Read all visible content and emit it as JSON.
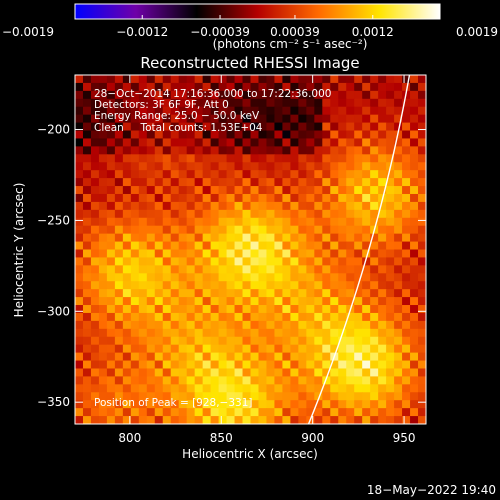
{
  "chart_data": {
    "type": "heatmap",
    "title": "Reconstructed RHESSI Image",
    "xlabel": "Heliocentric X (arcsec)",
    "ylabel": "Heliocentric Y (arcsec)",
    "xlim": [
      770,
      962
    ],
    "ylim": [
      -362,
      -170
    ],
    "x_ticks": [
      "800",
      "850",
      "900",
      "950"
    ],
    "x_tick_values": [
      800,
      850,
      900,
      950
    ],
    "y_ticks": [
      "−200",
      "−250",
      "−300",
      "−350"
    ],
    "y_tick_values": [
      -200,
      -250,
      -300,
      -350
    ],
    "colorbar": {
      "range": [
        -0.0019,
        0.0019
      ],
      "tick_labels": [
        "−0.0019",
        "−0.0012",
        "−0.00039",
        "0.00039",
        "0.0012",
        "0.0019"
      ],
      "tick_values": [
        -0.0019,
        -0.0012,
        -0.00039,
        0.00039,
        0.0012,
        0.0019
      ],
      "unit_label": "(photons cm⁻² s⁻¹ asec⁻²)",
      "colormap": [
        "#0000ff",
        "#6f00a8",
        "#000000",
        "#b40000",
        "#ff6a00",
        "#ffe400",
        "#ffffff"
      ]
    },
    "annotations": [
      "28−Oct−2014 17:16:36.000 to 17:22:36.000",
      "Detectors: 3F 6F 9F, Att 0",
      "Energy Range: 25.0 − 50.0 keV",
      "Clean     Total counts: 1.53E+04"
    ],
    "peak_label": "Position of Peak = [928,−331]",
    "peak_position": [
      928,
      -331
    ],
    "sources": [
      {
        "x": 866,
        "y": -265,
        "intensity": 1.0
      },
      {
        "x": 935,
        "y": -235,
        "intensity": 0.85
      },
      {
        "x": 928,
        "y": -331,
        "intensity": 1.0
      },
      {
        "x": 858,
        "y": -353,
        "intensity": 0.9
      },
      {
        "x": 800,
        "y": -278,
        "intensity": 0.8
      },
      {
        "x": 835,
        "y": -320,
        "intensity": 0.5
      },
      {
        "x": 900,
        "y": -300,
        "intensity": 0.45
      },
      {
        "x": 820,
        "y": -200,
        "intensity": 0.35
      },
      {
        "x": 790,
        "y": -355,
        "intensity": 0.45
      }
    ],
    "limb": {
      "center": [
        0,
        0
      ],
      "radius": 968
    },
    "grid": false
  },
  "footer": {
    "timestamp": "18−May−2022 19:40"
  }
}
